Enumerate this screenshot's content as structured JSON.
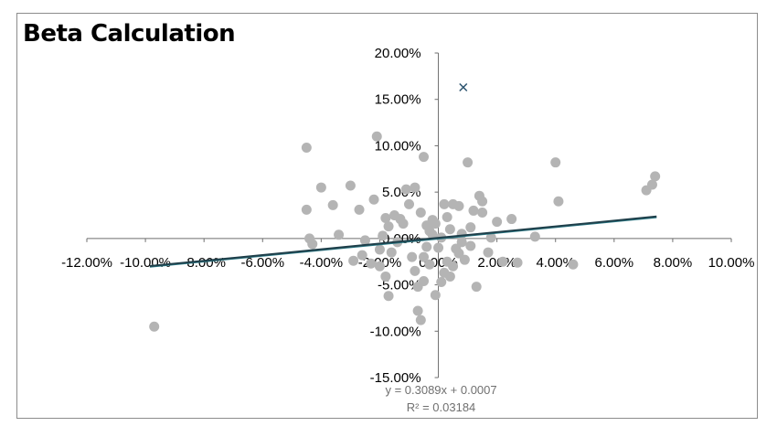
{
  "chart_data": {
    "type": "scatter",
    "title": "Beta Calculation",
    "xlabel": "",
    "ylabel": "",
    "xlim": [
      -0.12,
      0.1
    ],
    "ylim": [
      -0.15,
      0.2
    ],
    "x_ticks": [
      -0.12,
      -0.1,
      -0.08,
      -0.06,
      -0.04,
      -0.02,
      0.0,
      0.02,
      0.04,
      0.06,
      0.08,
      0.1
    ],
    "x_tick_labels": [
      "-12.00%",
      "-10.00%",
      "-8.00%",
      "-6.00%",
      "-4.00%",
      "-2.00%",
      "0.00%",
      "2.00%",
      "4.00%",
      "6.00%",
      "8.00%",
      "10.00%"
    ],
    "y_ticks": [
      -0.15,
      -0.1,
      -0.05,
      0.0,
      0.05,
      0.1,
      0.15,
      0.2
    ],
    "y_tick_labels": [
      "-15.00%",
      "-10.00%",
      "-5.00%",
      "0.00%",
      "5.00%",
      "10.00%",
      "15.00%",
      "20.00%"
    ],
    "grid": false,
    "legend": "none",
    "marker_color": "#b4b4b4",
    "outlier_color": "#2e5570",
    "trendline_color": "#1f3f4a",
    "trendline": {
      "slope": 0.3089,
      "intercept": 0.0007,
      "x_range": [
        -0.0985,
        0.0745
      ],
      "equation": "y = 0.3089x + 0.0007",
      "r_squared": "R² = 0.03184"
    },
    "outlier": {
      "x": 0.0085,
      "y": 0.163
    },
    "series": [
      {
        "x": [
          -0.097,
          -0.045,
          -0.045,
          -0.044,
          -0.043,
          -0.036,
          -0.034,
          -0.03,
          -0.029,
          -0.027,
          -0.025,
          -0.023,
          -0.022,
          -0.021,
          -0.02,
          -0.02,
          -0.019,
          -0.018,
          -0.018,
          -0.017,
          -0.017,
          -0.016,
          -0.015,
          -0.014,
          -0.013,
          -0.012,
          -0.011,
          -0.01,
          -0.009,
          -0.008,
          -0.008,
          -0.007,
          -0.007,
          -0.006,
          -0.006,
          -0.005,
          -0.005,
          -0.004,
          -0.004,
          -0.003,
          -0.003,
          -0.002,
          -0.002,
          -0.001,
          -0.001,
          0.0,
          0.001,
          0.001,
          0.002,
          0.002,
          0.003,
          0.003,
          0.004,
          0.004,
          0.005,
          0.005,
          0.006,
          0.007,
          0.007,
          0.008,
          0.009,
          0.01,
          0.011,
          0.011,
          0.013,
          0.014,
          0.015,
          0.015,
          0.017,
          0.02,
          0.022,
          0.025,
          0.027,
          0.033,
          0.04,
          0.041,
          0.046,
          0.071,
          0.073,
          0.074,
          -0.04,
          -0.005,
          0.012,
          0.018,
          0.008,
          -0.026
        ],
        "y": [
          -0.095,
          0.098,
          0.031,
          0.0,
          -0.006,
          0.036,
          0.004,
          0.057,
          -0.024,
          0.031,
          -0.002,
          -0.027,
          0.042,
          0.11,
          -0.012,
          -0.03,
          0.003,
          0.022,
          -0.041,
          -0.062,
          0.013,
          -0.015,
          0.025,
          -0.004,
          0.021,
          0.016,
          0.053,
          0.037,
          -0.02,
          0.055,
          -0.035,
          -0.052,
          -0.078,
          -0.088,
          0.028,
          0.088,
          -0.046,
          0.014,
          -0.009,
          0.008,
          -0.028,
          0.004,
          0.02,
          -0.061,
          0.016,
          -0.01,
          -0.047,
          0.001,
          -0.037,
          0.037,
          -0.025,
          0.023,
          -0.041,
          0.01,
          -0.03,
          0.037,
          -0.011,
          0.035,
          -0.016,
          0.005,
          -0.023,
          0.082,
          0.012,
          -0.008,
          -0.052,
          0.046,
          0.028,
          0.04,
          -0.015,
          0.018,
          -0.025,
          0.021,
          -0.026,
          0.002,
          0.082,
          0.04,
          -0.028,
          0.052,
          0.058,
          0.067,
          0.055,
          -0.02,
          0.03,
          0.001,
          -0.004,
          -0.018
        ]
      }
    ]
  }
}
